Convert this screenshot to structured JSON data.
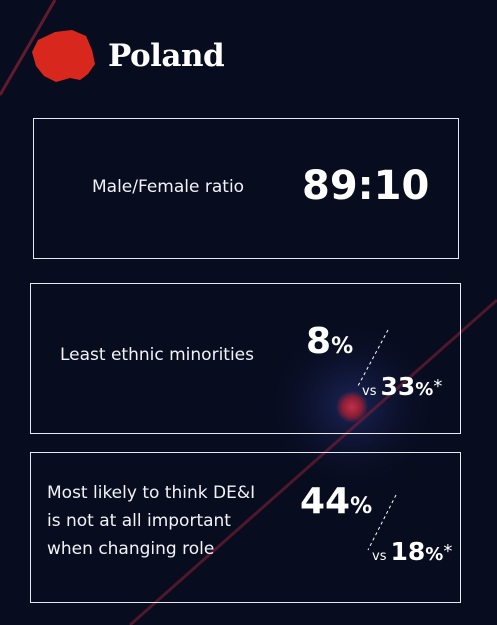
{
  "header": {
    "title": "Poland"
  },
  "stats": [
    {
      "label_lines": [
        "Male/Female ratio"
      ],
      "value": "89:10"
    },
    {
      "label_lines": [
        "Least ethnic minorities"
      ],
      "value": 8,
      "unit": "%",
      "comparison_prefix": "vs",
      "comparison": 33,
      "comparison_unit": "%",
      "footnote_mark": "*"
    },
    {
      "label_lines": [
        "Most likely to think DE&I",
        "is not at all important",
        "when changing role"
      ],
      "value": 44,
      "unit": "%",
      "comparison_prefix": "vs",
      "comparison": 18,
      "comparison_unit": "%",
      "footnote_mark": "*"
    }
  ]
}
